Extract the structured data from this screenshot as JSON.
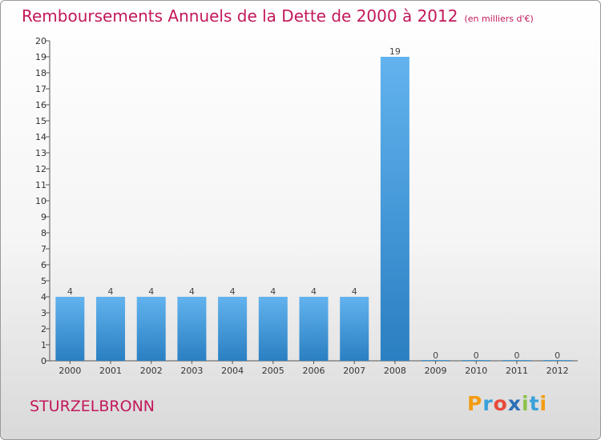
{
  "header": {
    "title": "Remboursements Annuels de la Dette de 2000 à 2012",
    "unit": "(en milliers d'€)"
  },
  "footer": {
    "commune": "STURZELBRONN",
    "logo_text": "Proxiti"
  },
  "colors": {
    "bar_light": "#62b3ee",
    "bar_dark": "#2a7fc2",
    "title": "#c2185b"
  },
  "chart_data": {
    "type": "bar",
    "title": "Remboursements Annuels de la Dette de 2000 à 2012",
    "categories": [
      "2000",
      "2001",
      "2002",
      "2003",
      "2004",
      "2005",
      "2006",
      "2007",
      "2008",
      "2009",
      "2010",
      "2011",
      "2012"
    ],
    "values": [
      4,
      4,
      4,
      4,
      4,
      4,
      4,
      4,
      19,
      0,
      0,
      0,
      0
    ],
    "ylim": [
      0,
      20
    ],
    "yticks": [
      0,
      1,
      2,
      3,
      4,
      5,
      6,
      7,
      8,
      9,
      10,
      11,
      12,
      13,
      14,
      15,
      16,
      17,
      18,
      19,
      20
    ],
    "grid": false,
    "legend": "none"
  }
}
